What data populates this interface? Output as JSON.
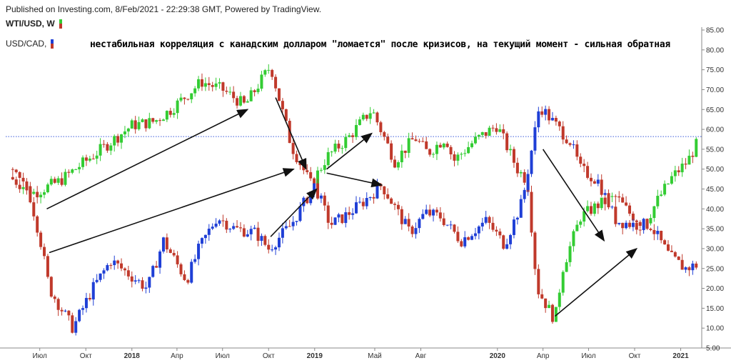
{
  "header": {
    "published": "Published on Investing.com, 8/Feb/2021 - 22:29:38 GMT, Powered by TradingView.",
    "wti_label": "WTI/USD, W",
    "cad_label": "USD/CAD,",
    "headline": "нестабильная корреляция с канадским долларом \"ломается\" после кризисов, на текущий момент - сильная обратная"
  },
  "colors": {
    "up_green": "#33cc33",
    "down_red": "#c0392b",
    "up_blue": "#1f3fd6",
    "hline": "#3b5bdb",
    "arrow": "#111111"
  },
  "chart_data": {
    "type": "candlestick",
    "y_axis": {
      "min": 5,
      "max": 85,
      "ticks": [
        "85.00",
        "80.00",
        "75.00",
        "70.00",
        "65.00",
        "60.00",
        "55.00",
        "50.00",
        "45.00",
        "40.00",
        "35.00",
        "30.00",
        "25.00",
        "20.00",
        "15.00",
        "10.00",
        "5.00"
      ],
      "position": "right"
    },
    "x_axis": {
      "ticks": [
        {
          "label": "Июл",
          "bold": false
        },
        {
          "label": "Окт",
          "bold": false
        },
        {
          "label": "2018",
          "bold": true
        },
        {
          "label": "Апр",
          "bold": false
        },
        {
          "label": "Июл",
          "bold": false
        },
        {
          "label": "Окт",
          "bold": false
        },
        {
          "label": "2019",
          "bold": true
        },
        {
          "label": "Май",
          "bold": false
        },
        {
          "label": "Авг",
          "bold": false
        },
        {
          "label": "2020",
          "bold": true
        },
        {
          "label": "Апр",
          "bold": false
        },
        {
          "label": "Июл",
          "bold": false
        },
        {
          "label": "Окт",
          "bold": false
        },
        {
          "label": "2021",
          "bold": true
        }
      ]
    },
    "horizontal_line": 58.2,
    "series": [
      {
        "name": "WTI/USD, W",
        "anchors": [
          [
            "2017-05-01",
            48
          ],
          [
            "2017-06-20",
            44
          ],
          [
            "2017-08-10",
            47
          ],
          [
            "2017-09-20",
            51
          ],
          [
            "2017-11-01",
            55
          ],
          [
            "2018-01-01",
            61
          ],
          [
            "2018-02-15",
            62
          ],
          [
            "2018-03-20",
            65
          ],
          [
            "2018-05-20",
            72
          ],
          [
            "2018-07-01",
            70
          ],
          [
            "2018-08-15",
            66
          ],
          [
            "2018-10-05",
            76
          ],
          [
            "2018-11-15",
            56
          ],
          [
            "2018-12-25",
            46
          ],
          [
            "2019-01-25",
            53
          ],
          [
            "2019-03-10",
            58
          ],
          [
            "2019-04-25",
            65
          ],
          [
            "2019-06-10",
            52
          ],
          [
            "2019-07-20",
            58
          ],
          [
            "2019-08-15",
            54
          ],
          [
            "2019-09-20",
            58
          ],
          [
            "2019-10-05",
            52
          ],
          [
            "2019-11-15",
            57
          ],
          [
            "2019-12-31",
            61
          ],
          [
            "2020-02-10",
            50
          ],
          [
            "2020-03-01",
            47
          ],
          [
            "2020-03-20",
            20
          ],
          [
            "2020-04-25",
            12
          ],
          [
            "2020-05-10",
            25
          ],
          [
            "2020-06-15",
            38
          ],
          [
            "2020-07-20",
            41
          ],
          [
            "2020-08-25",
            43
          ],
          [
            "2020-09-20",
            39
          ],
          [
            "2020-10-20",
            36
          ],
          [
            "2020-11-15",
            42
          ],
          [
            "2020-12-15",
            48
          ],
          [
            "2021-01-15",
            52
          ],
          [
            "2021-02-05",
            57
          ]
        ]
      },
      {
        "name": "USD/CAD,",
        "anchors": [
          [
            "2017-05-01",
            50
          ],
          [
            "2017-06-10",
            44
          ],
          [
            "2017-07-01",
            33
          ],
          [
            "2017-07-20",
            20
          ],
          [
            "2017-09-05",
            10
          ],
          [
            "2017-10-15",
            20
          ],
          [
            "2017-11-20",
            27
          ],
          [
            "2018-01-01",
            23
          ],
          [
            "2018-02-01",
            20
          ],
          [
            "2018-03-05",
            32
          ],
          [
            "2018-04-20",
            22
          ],
          [
            "2018-05-15",
            30
          ],
          [
            "2018-06-20",
            38
          ],
          [
            "2018-07-25",
            35
          ],
          [
            "2018-09-05",
            34
          ],
          [
            "2018-10-01",
            30
          ],
          [
            "2018-11-15",
            36
          ],
          [
            "2019-01-01",
            46
          ],
          [
            "2019-02-01",
            36
          ],
          [
            "2019-03-01",
            38
          ],
          [
            "2019-04-01",
            41
          ],
          [
            "2019-05-15",
            46
          ],
          [
            "2019-07-10",
            34
          ],
          [
            "2019-08-10",
            39
          ],
          [
            "2019-09-10",
            38
          ],
          [
            "2019-10-20",
            32
          ],
          [
            "2019-12-10",
            37
          ],
          [
            "2020-01-15",
            31
          ],
          [
            "2020-02-20",
            42
          ],
          [
            "2020-03-25",
            66
          ],
          [
            "2020-04-20",
            62
          ],
          [
            "2020-05-25",
            57
          ],
          [
            "2020-06-15",
            50
          ],
          [
            "2020-07-20",
            47
          ],
          [
            "2020-08-25",
            37
          ],
          [
            "2020-09-30",
            36
          ],
          [
            "2020-11-01",
            36
          ],
          [
            "2020-12-10",
            28
          ],
          [
            "2021-01-10",
            25
          ],
          [
            "2021-02-05",
            26
          ]
        ]
      }
    ],
    "arrows": [
      {
        "from": [
          "2017-07-15",
          40
        ],
        "to": [
          "2018-08-20",
          65
        ]
      },
      {
        "from": [
          "2017-07-20",
          29
        ],
        "to": [
          "2018-11-20",
          50
        ]
      },
      {
        "from": [
          "2018-10-05",
          33
        ],
        "to": [
          "2019-01-05",
          45
        ]
      },
      {
        "from": [
          "2018-10-15",
          68
        ],
        "to": [
          "2018-12-15",
          50
        ]
      },
      {
        "from": [
          "2019-01-25",
          50
        ],
        "to": [
          "2019-04-25",
          59
        ]
      },
      {
        "from": [
          "2019-01-25",
          49
        ],
        "to": [
          "2019-05-15",
          46
        ]
      },
      {
        "from": [
          "2020-04-01",
          55
        ],
        "to": [
          "2020-08-01",
          32
        ]
      },
      {
        "from": [
          "2020-04-25",
          13
        ],
        "to": [
          "2020-10-05",
          30
        ]
      }
    ]
  }
}
